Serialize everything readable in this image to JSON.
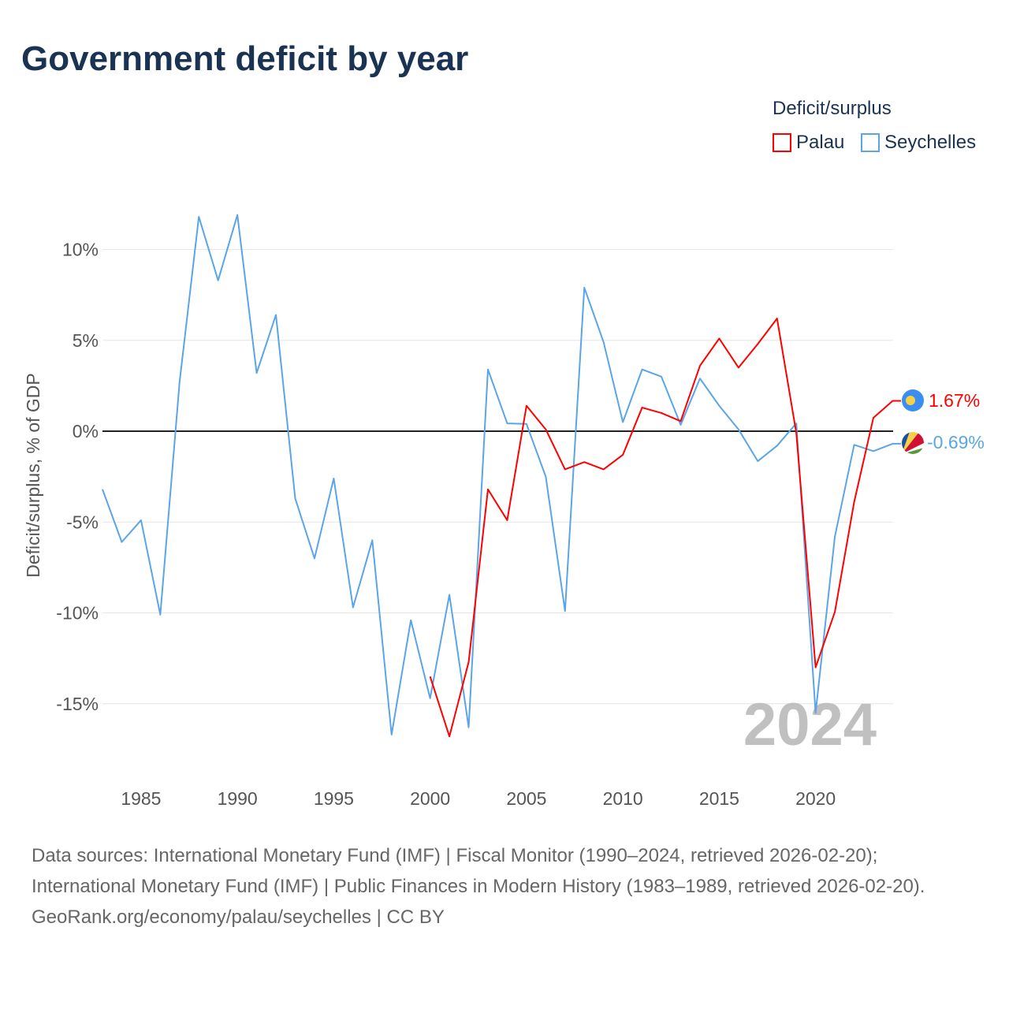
{
  "title": "Government deficit by year",
  "legend": {
    "title": "Deficit/surplus",
    "items": [
      {
        "label": "Palau",
        "color": "#ff0000"
      },
      {
        "label": "Seychelles",
        "color": "#5aa5e8"
      }
    ]
  },
  "year_watermark": "2024",
  "end_labels": {
    "palau": "1.67%",
    "seychelles": "-0.69%"
  },
  "sources": {
    "line1": "Data sources: International Monetary Fund (IMF) | Fiscal Monitor (1990–2024, retrieved 2026-02-20); International Monetary Fund (IMF) | Public Finances in Modern History (1983–1989, retrieved 2026-02-20).",
    "line2": "GeoRank.org/economy/palau/seychelles | CC BY"
  },
  "chart_data": {
    "type": "line",
    "ylabel": "Deficit/surplus, % of GDP",
    "xlabel": "",
    "xlim": [
      1983,
      2024
    ],
    "ylim": [
      -18,
      14
    ],
    "x_ticks": [
      1985,
      1990,
      1995,
      2000,
      2005,
      2010,
      2015,
      2020
    ],
    "y_ticks": [
      {
        "v": 10,
        "label": "10%"
      },
      {
        "v": 5,
        "label": "5%"
      },
      {
        "v": 0,
        "label": "0%"
      },
      {
        "v": -5,
        "label": "-5%"
      },
      {
        "v": -10,
        "label": "-10%"
      },
      {
        "v": -15,
        "label": "-15%"
      }
    ],
    "series": [
      {
        "name": "Seychelles",
        "color": "#5aa5e8",
        "start": 1983,
        "values": [
          -3.2,
          -6.1,
          -4.9,
          -10.1,
          2.7,
          11.8,
          8.3,
          11.9,
          3.2,
          6.4,
          -3.7,
          -7.0,
          -2.6,
          -9.7,
          -6.0,
          -16.7,
          -10.4,
          -14.7,
          -9.0,
          -16.3,
          3.4,
          0.43,
          0.4,
          -2.5,
          -9.9,
          7.9,
          4.9,
          0.5,
          3.4,
          3.0,
          0.35,
          2.9,
          1.4,
          0.1,
          -1.65,
          -0.8,
          0.43,
          -15.5,
          -5.8,
          -0.75,
          -1.1,
          -0.69
        ]
      },
      {
        "name": "Palau",
        "color": "#ff0000",
        "start": 2000,
        "values": [
          -13.5,
          -16.8,
          -12.7,
          -3.2,
          -4.9,
          1.4,
          0.1,
          -2.1,
          -1.7,
          -2.1,
          -1.3,
          1.3,
          1.0,
          0.55,
          3.6,
          5.1,
          3.5,
          4.8,
          6.2,
          -0.1,
          -13.0,
          -9.95,
          -3.9,
          0.74,
          1.67
        ]
      }
    ]
  }
}
